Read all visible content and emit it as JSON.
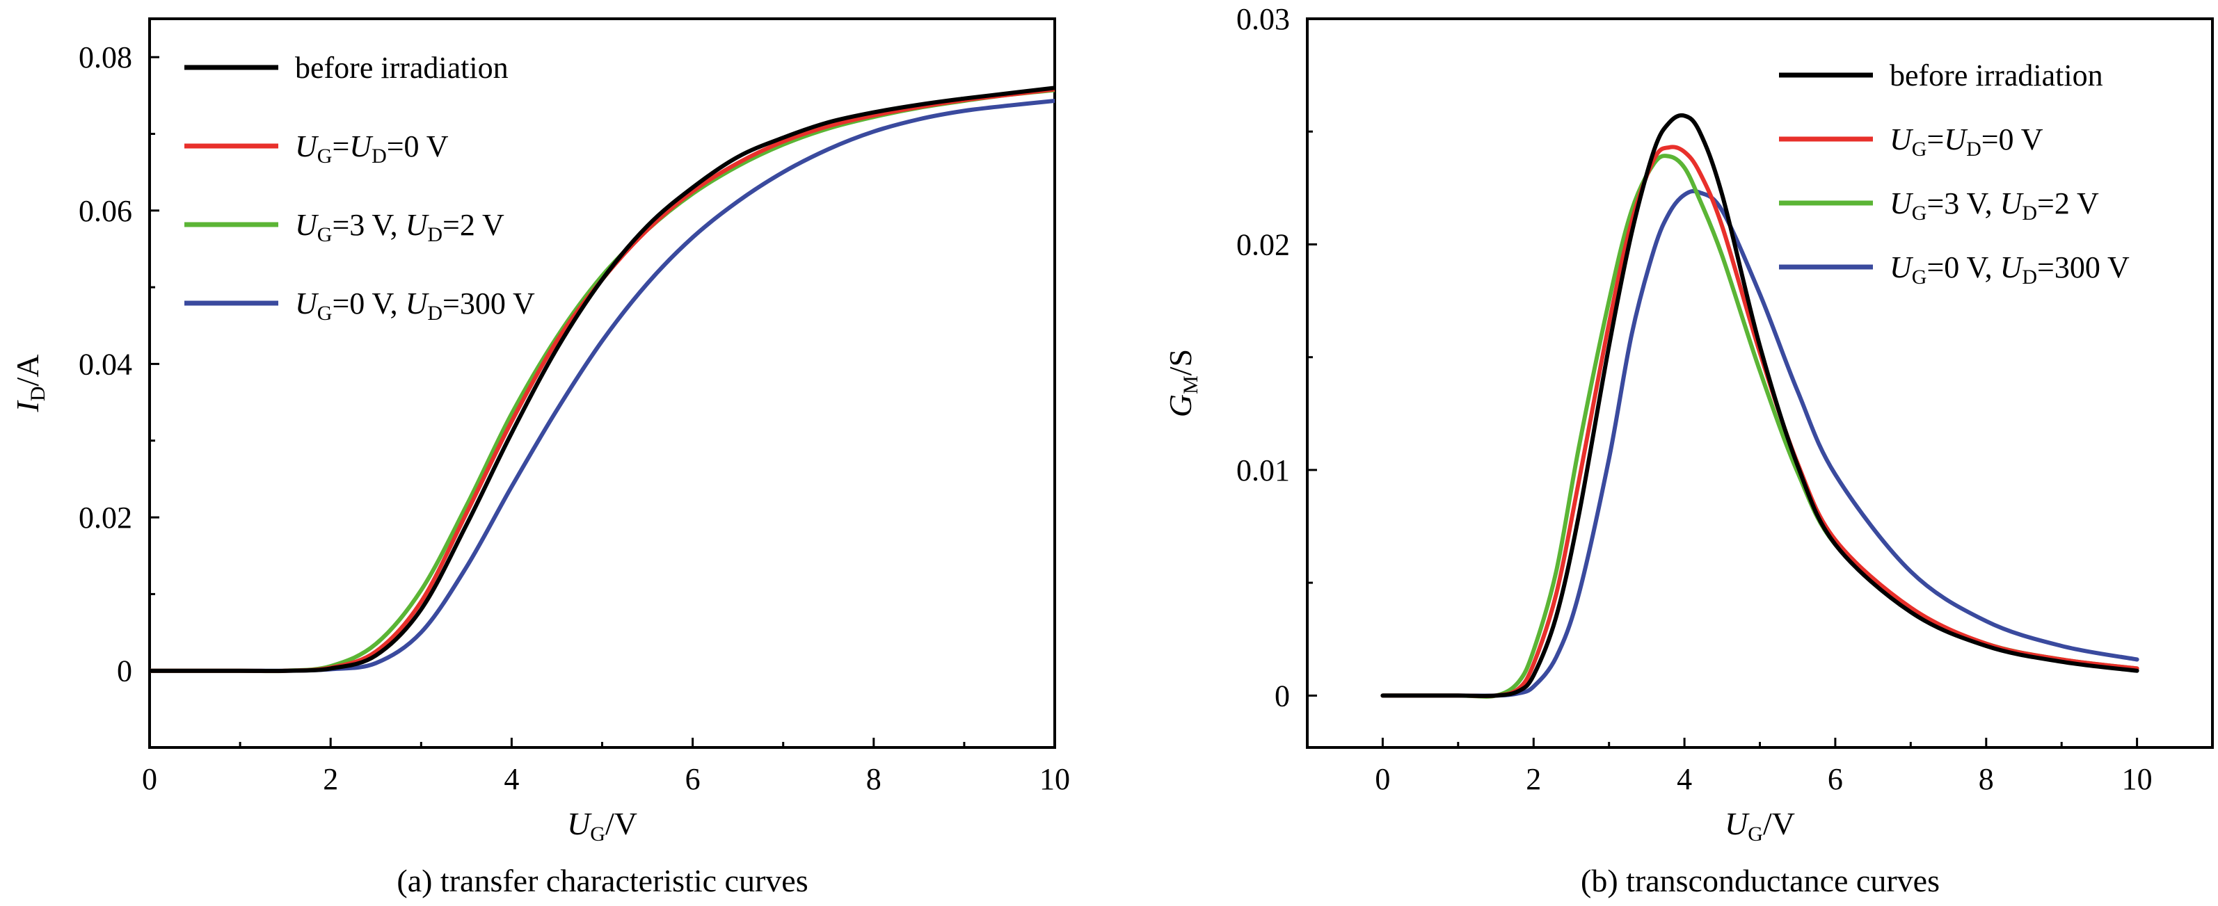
{
  "colors": {
    "before": "#000000",
    "ug_ud_0": "#e8302b",
    "ug3_ud2": "#5bb535",
    "ug0_ud300": "#3a4a9e"
  },
  "chart_data": [
    {
      "type": "line",
      "caption": "(a) transfer characteristic curves",
      "xlabel_main": "U",
      "xlabel_sub": "G",
      "xlabel_tail": "/V",
      "ylabel_main": "I",
      "ylabel_sub": "D",
      "ylabel_tail": "/A",
      "xlim": [
        0,
        10
      ],
      "ylim": [
        -0.01,
        0.085
      ],
      "xticks": [
        0,
        2,
        4,
        6,
        8,
        10
      ],
      "xtick_labels": [
        "0",
        "2",
        "4",
        "6",
        "8",
        "10"
      ],
      "yticks": [
        0,
        0.02,
        0.04,
        0.06,
        0.08
      ],
      "ytick_labels": [
        "0",
        "0.02",
        "0.04",
        "0.06",
        "0.08"
      ],
      "legend_position": "top-left",
      "x": [
        0,
        1,
        1.5,
        2,
        2.5,
        3,
        3.5,
        4,
        4.5,
        5,
        5.5,
        6,
        6.5,
        7,
        7.5,
        8,
        8.5,
        9,
        9.5,
        10
      ],
      "series": [
        {
          "key": "before",
          "color_key": "before",
          "values": [
            0,
            0,
            0,
            0.0003,
            0.002,
            0.008,
            0.019,
            0.031,
            0.042,
            0.051,
            0.058,
            0.063,
            0.067,
            0.0695,
            0.0715,
            0.0728,
            0.0738,
            0.0746,
            0.0753,
            0.076
          ]
        },
        {
          "key": "ug_ud_0",
          "color_key": "ug_ud_0",
          "values": [
            0,
            0,
            0,
            0.0004,
            0.0025,
            0.009,
            0.0205,
            0.0325,
            0.043,
            0.051,
            0.0575,
            0.0625,
            0.0662,
            0.069,
            0.071,
            0.0724,
            0.0735,
            0.0744,
            0.0751,
            0.0758
          ]
        },
        {
          "key": "ug3_ud2",
          "color_key": "ug3_ud2",
          "values": [
            0,
            0,
            0,
            0.0006,
            0.0035,
            0.0105,
            0.0215,
            0.0335,
            0.0435,
            0.0515,
            0.0575,
            0.0622,
            0.0658,
            0.0686,
            0.0707,
            0.0722,
            0.0734,
            0.0743,
            0.0751,
            0.0757
          ]
        },
        {
          "key": "ug0_ud300",
          "color_key": "ug0_ud300",
          "values": [
            0,
            0,
            0,
            0.0002,
            0.001,
            0.005,
            0.0135,
            0.024,
            0.034,
            0.043,
            0.0505,
            0.0565,
            0.0612,
            0.065,
            0.068,
            0.0703,
            0.0719,
            0.073,
            0.0737,
            0.0743
          ]
        }
      ]
    },
    {
      "type": "line",
      "caption": "(b) transconductance curves",
      "xlabel_main": "U",
      "xlabel_sub": "G",
      "xlabel_tail": "/V",
      "ylabel_main": "G",
      "ylabel_sub": "M",
      "ylabel_tail": "/S",
      "xlim": [
        -1,
        11
      ],
      "ylim": [
        -0.0023,
        0.03
      ],
      "xticks": [
        0,
        2,
        4,
        6,
        8,
        10
      ],
      "xtick_labels": [
        "0",
        "2",
        "4",
        "6",
        "8",
        "10"
      ],
      "yticks": [
        0,
        0.01,
        0.02,
        0.03
      ],
      "ytick_labels": [
        "0",
        "0.01",
        "0.02",
        "0.03"
      ],
      "legend_position": "top-right",
      "x": [
        0,
        1,
        1.5,
        1.8,
        2,
        2.3,
        2.6,
        3,
        3.3,
        3.6,
        3.8,
        4,
        4.2,
        4.5,
        5,
        5.5,
        6,
        7,
        8,
        9,
        10
      ],
      "series": [
        {
          "key": "before",
          "color_key": "before",
          "values": [
            0,
            0,
            0,
            0.0002,
            0.0009,
            0.0035,
            0.008,
            0.0155,
            0.0205,
            0.0242,
            0.0254,
            0.0257,
            0.025,
            0.0222,
            0.0155,
            0.0102,
            0.0067,
            0.0037,
            0.0022,
            0.0015,
            0.0011
          ]
        },
        {
          "key": "ug_ud_0",
          "color_key": "ug_ud_0",
          "values": [
            0,
            0,
            0,
            0.0003,
            0.0014,
            0.0045,
            0.0095,
            0.0165,
            0.021,
            0.0238,
            0.0243,
            0.0241,
            0.0232,
            0.0208,
            0.0152,
            0.0103,
            0.0069,
            0.0039,
            0.0023,
            0.0016,
            0.0012
          ]
        },
        {
          "key": "ug3_ud2",
          "color_key": "ug3_ud2",
          "values": [
            0,
            0,
            0,
            0.0006,
            0.002,
            0.0055,
            0.011,
            0.0175,
            0.0215,
            0.0236,
            0.0239,
            0.0234,
            0.022,
            0.0195,
            0.0144,
            0.0099,
            0.0067,
            0.0038,
            0.0023,
            0.0016,
            0.0012
          ]
        },
        {
          "key": "ug0_ud300",
          "color_key": "ug0_ud300",
          "values": [
            0,
            0,
            0,
            0.0001,
            0.0004,
            0.0017,
            0.0045,
            0.0105,
            0.016,
            0.0198,
            0.0214,
            0.0222,
            0.0223,
            0.0215,
            0.0178,
            0.0135,
            0.0098,
            0.0055,
            0.0033,
            0.0022,
            0.0016
          ]
        }
      ]
    }
  ],
  "legend": [
    {
      "key": "before",
      "color_key": "before",
      "parts": [
        [
          "before irradiation",
          "n"
        ]
      ]
    },
    {
      "key": "ug_ud_0",
      "color_key": "ug_ud_0",
      "parts": [
        [
          "U",
          "i"
        ],
        [
          "G",
          "s"
        ],
        [
          "=",
          "n"
        ],
        [
          "U",
          "i"
        ],
        [
          "D",
          "s"
        ],
        [
          "=0 V",
          "n"
        ]
      ]
    },
    {
      "key": "ug3_ud2",
      "color_key": "ug3_ud2",
      "parts": [
        [
          "U",
          "i"
        ],
        [
          "G",
          "s"
        ],
        [
          "=3 V, ",
          "n"
        ],
        [
          "U",
          "i"
        ],
        [
          "D",
          "s"
        ],
        [
          "=2 V",
          "n"
        ]
      ]
    },
    {
      "key": "ug0_ud300",
      "color_key": "ug0_ud300",
      "parts": [
        [
          "U",
          "i"
        ],
        [
          "G",
          "s"
        ],
        [
          "=0 V, ",
          "n"
        ],
        [
          "U",
          "i"
        ],
        [
          "D",
          "s"
        ],
        [
          "=300 V",
          "n"
        ]
      ]
    }
  ]
}
